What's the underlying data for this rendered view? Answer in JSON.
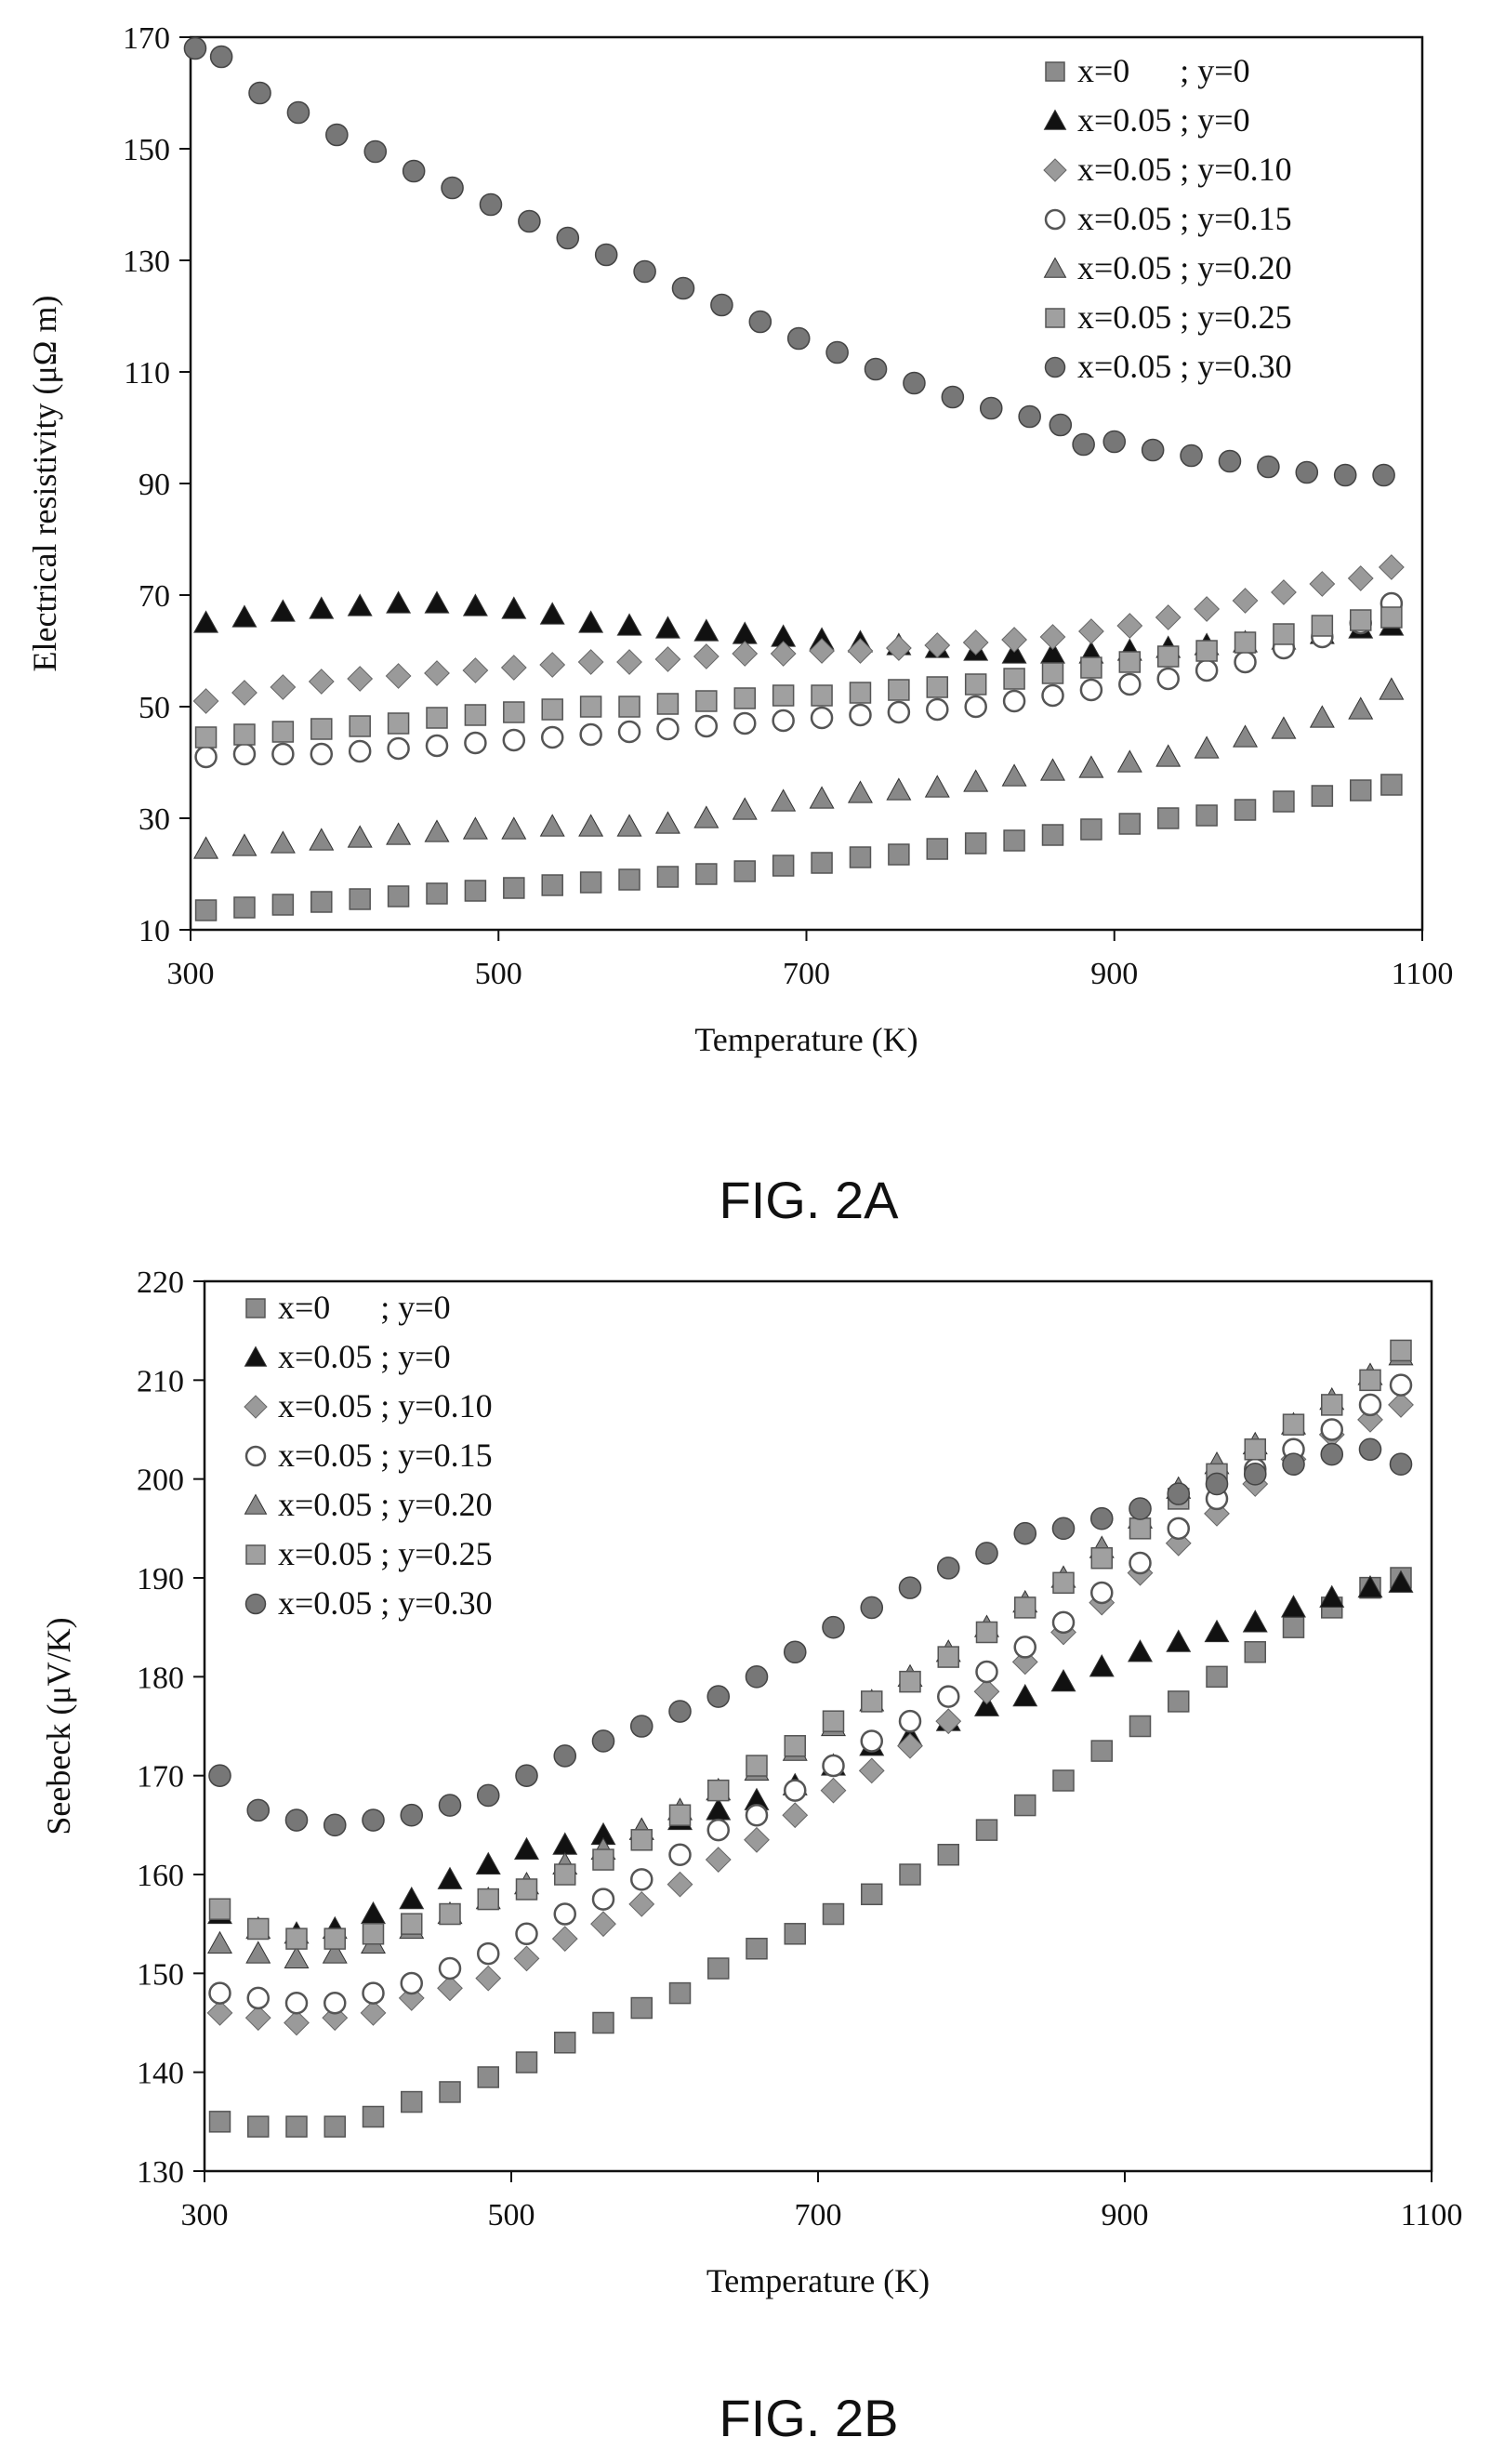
{
  "chart_data": [
    {
      "type": "scatter",
      "caption": "FIG. 2A",
      "xlabel": "Temperature (K)",
      "ylabel": "Electrical resistivity (μΩ m)",
      "xlim": [
        300,
        1100
      ],
      "ylim": [
        10,
        170
      ],
      "xticks": [
        300,
        500,
        700,
        900,
        1100
      ],
      "yticks": [
        10,
        30,
        50,
        70,
        90,
        110,
        130,
        150,
        170
      ],
      "legend_position": "top-right",
      "grid": false,
      "series": [
        {
          "name": "x=0      ; y=0",
          "marker": "square",
          "color": "#8c8c8c",
          "x": [
            310,
            335,
            360,
            385,
            410,
            435,
            460,
            485,
            510,
            535,
            560,
            585,
            610,
            635,
            660,
            685,
            710,
            735,
            760,
            785,
            810,
            835,
            860,
            885,
            910,
            935,
            960,
            985,
            1010,
            1035,
            1060,
            1080
          ],
          "y": [
            13.5,
            14,
            14.5,
            15,
            15.5,
            16,
            16.5,
            17,
            17.5,
            18,
            18.5,
            19,
            19.5,
            20,
            20.5,
            21.5,
            22,
            23,
            23.5,
            24.5,
            25.5,
            26,
            27,
            28,
            29,
            30,
            30.5,
            31.5,
            33,
            34,
            35,
            36
          ]
        },
        {
          "name": "x=0.05 ; y=0",
          "marker": "triangle",
          "color": "#111111",
          "x": [
            310,
            335,
            360,
            385,
            410,
            435,
            460,
            485,
            510,
            535,
            560,
            585,
            610,
            635,
            660,
            685,
            710,
            735,
            760,
            785,
            810,
            835,
            860,
            885,
            910,
            935,
            960,
            985,
            1010,
            1035,
            1060,
            1080
          ],
          "y": [
            65,
            66,
            67,
            67.5,
            68,
            68.5,
            68.5,
            68,
            67.5,
            66.5,
            65,
            64.5,
            64,
            63.5,
            63,
            62.5,
            62,
            61.5,
            61,
            60.5,
            60,
            59.5,
            59.5,
            59.5,
            60,
            60.5,
            61,
            61.5,
            62,
            63,
            64,
            64.5
          ]
        },
        {
          "name": "x=0.05 ; y=0.10",
          "marker": "diamond",
          "color": "#9a9a9a",
          "x": [
            310,
            335,
            360,
            385,
            410,
            435,
            460,
            485,
            510,
            535,
            560,
            585,
            610,
            635,
            660,
            685,
            710,
            735,
            760,
            785,
            810,
            835,
            860,
            885,
            910,
            935,
            960,
            985,
            1010,
            1035,
            1060,
            1080
          ],
          "y": [
            51,
            52.5,
            53.5,
            54.5,
            55,
            55.5,
            56,
            56.5,
            57,
            57.5,
            58,
            58,
            58.5,
            59,
            59.5,
            59.5,
            60,
            60,
            60.5,
            61,
            61.5,
            62,
            62.5,
            63.5,
            64.5,
            66,
            67.5,
            69,
            70.5,
            72,
            73,
            75
          ]
        },
        {
          "name": "x=0.05 ; y=0.15",
          "marker": "circle-open",
          "color": "#555555",
          "x": [
            310,
            335,
            360,
            385,
            410,
            435,
            460,
            485,
            510,
            535,
            560,
            585,
            610,
            635,
            660,
            685,
            710,
            735,
            760,
            785,
            810,
            835,
            860,
            885,
            910,
            935,
            960,
            985,
            1010,
            1035,
            1060,
            1080
          ],
          "y": [
            41,
            41.5,
            41.5,
            41.5,
            42,
            42.5,
            43,
            43.5,
            44,
            44.5,
            45,
            45.5,
            46,
            46.5,
            47,
            47.5,
            48,
            48.5,
            49,
            49.5,
            50,
            51,
            52,
            53,
            54,
            55,
            56.5,
            58,
            60.5,
            62.5,
            65,
            68.5
          ]
        },
        {
          "name": "x=0.05 ; y=0.20",
          "marker": "triangle",
          "color": "#888888",
          "x": [
            310,
            335,
            360,
            385,
            410,
            435,
            460,
            485,
            510,
            535,
            560,
            585,
            610,
            635,
            660,
            685,
            710,
            735,
            760,
            785,
            810,
            835,
            860,
            885,
            910,
            935,
            960,
            985,
            1010,
            1035,
            1060,
            1080
          ],
          "y": [
            24.5,
            25,
            25.5,
            26,
            26.5,
            27,
            27.5,
            28,
            28,
            28.5,
            28.5,
            28.5,
            29,
            30,
            31.5,
            33,
            33.5,
            34.5,
            35,
            35.5,
            36.5,
            37.5,
            38.5,
            39,
            40,
            41,
            42.5,
            44.5,
            46,
            48,
            49.5,
            53
          ]
        },
        {
          "name": "x=0.05 ; y=0.25",
          "marker": "square",
          "color": "#a0a0a0",
          "x": [
            310,
            335,
            360,
            385,
            410,
            435,
            460,
            485,
            510,
            535,
            560,
            585,
            610,
            635,
            660,
            685,
            710,
            735,
            760,
            785,
            810,
            835,
            860,
            885,
            910,
            935,
            960,
            985,
            1010,
            1035,
            1060,
            1080
          ],
          "y": [
            44.5,
            45,
            45.5,
            46,
            46.5,
            47,
            48,
            48.5,
            49,
            49.5,
            50,
            50,
            50.5,
            51,
            51.5,
            52,
            52,
            52.5,
            53,
            53.5,
            54,
            55,
            56,
            57,
            58,
            59,
            60,
            61.5,
            63,
            64.5,
            65.5,
            66
          ]
        },
        {
          "name": "x=0.05 ; y=0.30",
          "marker": "circle",
          "color": "#777777",
          "x": [
            303,
            320,
            345,
            370,
            395,
            420,
            445,
            470,
            495,
            520,
            545,
            570,
            595,
            620,
            645,
            670,
            695,
            720,
            745,
            770,
            795,
            820,
            845,
            865,
            880,
            900,
            925,
            950,
            975,
            1000,
            1025,
            1050,
            1075
          ],
          "y": [
            168,
            166.5,
            160,
            156.5,
            152.5,
            149.5,
            146,
            143,
            140,
            137,
            134,
            131,
            128,
            125,
            122,
            119,
            116,
            113.5,
            110.5,
            108,
            105.5,
            103.5,
            102,
            100.5,
            97,
            97.5,
            96,
            95,
            94,
            93,
            92,
            91.5,
            91.5
          ]
        }
      ]
    },
    {
      "type": "scatter",
      "caption": "FIG. 2B",
      "xlabel": "Temperature (K)",
      "ylabel": "Seebeck  (μV/K)",
      "xlim": [
        300,
        1100
      ],
      "ylim": [
        130,
        220
      ],
      "xticks": [
        300,
        500,
        700,
        900,
        1100
      ],
      "yticks": [
        130,
        140,
        150,
        160,
        170,
        180,
        190,
        200,
        210,
        220
      ],
      "legend_position": "top-left",
      "grid": false,
      "series": [
        {
          "name": "x=0      ; y=0",
          "marker": "square",
          "color": "#8c8c8c",
          "x": [
            310,
            335,
            360,
            385,
            410,
            435,
            460,
            485,
            510,
            535,
            560,
            585,
            610,
            635,
            660,
            685,
            710,
            735,
            760,
            785,
            810,
            835,
            860,
            885,
            910,
            935,
            960,
            985,
            1010,
            1035,
            1060,
            1080
          ],
          "y": [
            135,
            134.5,
            134.5,
            134.5,
            135.5,
            137,
            138,
            139.5,
            141,
            143,
            145,
            146.5,
            148,
            150.5,
            152.5,
            154,
            156,
            158,
            160,
            162,
            164.5,
            167,
            169.5,
            172.5,
            175,
            177.5,
            180,
            182.5,
            185,
            187,
            189,
            190
          ]
        },
        {
          "name": "x=0.05 ; y=0",
          "marker": "triangle",
          "color": "#111111",
          "x": [
            310,
            335,
            360,
            385,
            410,
            435,
            460,
            485,
            510,
            535,
            560,
            585,
            610,
            635,
            660,
            685,
            710,
            735,
            760,
            785,
            810,
            835,
            860,
            885,
            910,
            935,
            960,
            985,
            1010,
            1035,
            1060,
            1080
          ],
          "y": [
            156,
            154.5,
            154,
            154.5,
            156,
            157.5,
            159.5,
            161,
            162.5,
            163,
            164,
            164.5,
            165.5,
            166.5,
            167.5,
            169,
            171,
            173,
            174,
            175.5,
            177,
            178,
            179.5,
            181,
            182.5,
            183.5,
            184.5,
            185.5,
            187,
            188,
            189,
            189.5
          ]
        },
        {
          "name": "x=0.05 ; y=0.10",
          "marker": "diamond",
          "color": "#9a9a9a",
          "x": [
            310,
            335,
            360,
            385,
            410,
            435,
            460,
            485,
            510,
            535,
            560,
            585,
            610,
            635,
            660,
            685,
            710,
            735,
            760,
            785,
            810,
            835,
            860,
            885,
            910,
            935,
            960,
            985,
            1010,
            1035,
            1060,
            1080
          ],
          "y": [
            146,
            145.5,
            145,
            145.5,
            146,
            147.5,
            148.5,
            149.5,
            151.5,
            153.5,
            155,
            157,
            159,
            161.5,
            163.5,
            166,
            168.5,
            170.5,
            173,
            175.5,
            178.5,
            181.5,
            184.5,
            187.5,
            190.5,
            193.5,
            196.5,
            199.5,
            202,
            204.5,
            206,
            207.5
          ]
        },
        {
          "name": "x=0.05 ; y=0.15",
          "marker": "circle-open",
          "color": "#555555",
          "x": [
            310,
            335,
            360,
            385,
            410,
            435,
            460,
            485,
            510,
            535,
            560,
            585,
            610,
            635,
            660,
            685,
            710,
            735,
            760,
            785,
            810,
            835,
            860,
            885,
            910,
            935,
            960,
            985,
            1010,
            1035,
            1060,
            1080
          ],
          "y": [
            148,
            147.5,
            147,
            147,
            148,
            149,
            150.5,
            152,
            154,
            156,
            157.5,
            159.5,
            162,
            164.5,
            166,
            168.5,
            171,
            173.5,
            175.5,
            178,
            180.5,
            183,
            185.5,
            188.5,
            191.5,
            195,
            198,
            201,
            203,
            205,
            207.5,
            209.5
          ]
        },
        {
          "name": "x=0.05 ; y=0.20",
          "marker": "triangle",
          "color": "#888888",
          "x": [
            310,
            335,
            360,
            385,
            410,
            435,
            460,
            485,
            510,
            535,
            560,
            585,
            610,
            635,
            660,
            685,
            710,
            735,
            760,
            785,
            810,
            835,
            860,
            885,
            910,
            935,
            960,
            985,
            1010,
            1035,
            1060,
            1080
          ],
          "y": [
            153,
            152,
            151.5,
            152,
            153,
            154.5,
            156,
            157.5,
            159,
            161,
            162.5,
            164.5,
            166.5,
            168.5,
            170.5,
            172.5,
            175,
            177.5,
            180,
            182.5,
            185,
            187.5,
            190,
            193,
            196,
            199,
            201.5,
            203.5,
            205.5,
            208,
            210.5,
            212.5
          ]
        },
        {
          "name": "x=0.05 ; y=0.25",
          "marker": "square",
          "color": "#a0a0a0",
          "x": [
            310,
            335,
            360,
            385,
            410,
            435,
            460,
            485,
            510,
            535,
            560,
            585,
            610,
            635,
            660,
            685,
            710,
            735,
            760,
            785,
            810,
            835,
            860,
            885,
            910,
            935,
            960,
            985,
            1010,
            1035,
            1060,
            1080
          ],
          "y": [
            156.5,
            154.5,
            153.5,
            153.5,
            154,
            155,
            156,
            157.5,
            158.5,
            160,
            161.5,
            163.5,
            166,
            168.5,
            171,
            173,
            175.5,
            177.5,
            179.5,
            182,
            184.5,
            187,
            189.5,
            192,
            195,
            198,
            200.5,
            203,
            205.5,
            207.5,
            210,
            213
          ]
        },
        {
          "name": "x=0.05 ; y=0.30",
          "marker": "circle",
          "color": "#777777",
          "x": [
            310,
            335,
            360,
            385,
            410,
            435,
            460,
            485,
            510,
            535,
            560,
            585,
            610,
            635,
            660,
            685,
            710,
            735,
            760,
            785,
            810,
            835,
            860,
            885,
            910,
            935,
            960,
            985,
            1010,
            1035,
            1060,
            1080
          ],
          "y": [
            170,
            166.5,
            165.5,
            165,
            165.5,
            166,
            167,
            168,
            170,
            172,
            173.5,
            175,
            176.5,
            178,
            180,
            182.5,
            185,
            187,
            189,
            191,
            192.5,
            194.5,
            195,
            196,
            197,
            198.5,
            199.5,
            200.5,
            201.5,
            202.5,
            203,
            201.5
          ]
        }
      ]
    }
  ]
}
